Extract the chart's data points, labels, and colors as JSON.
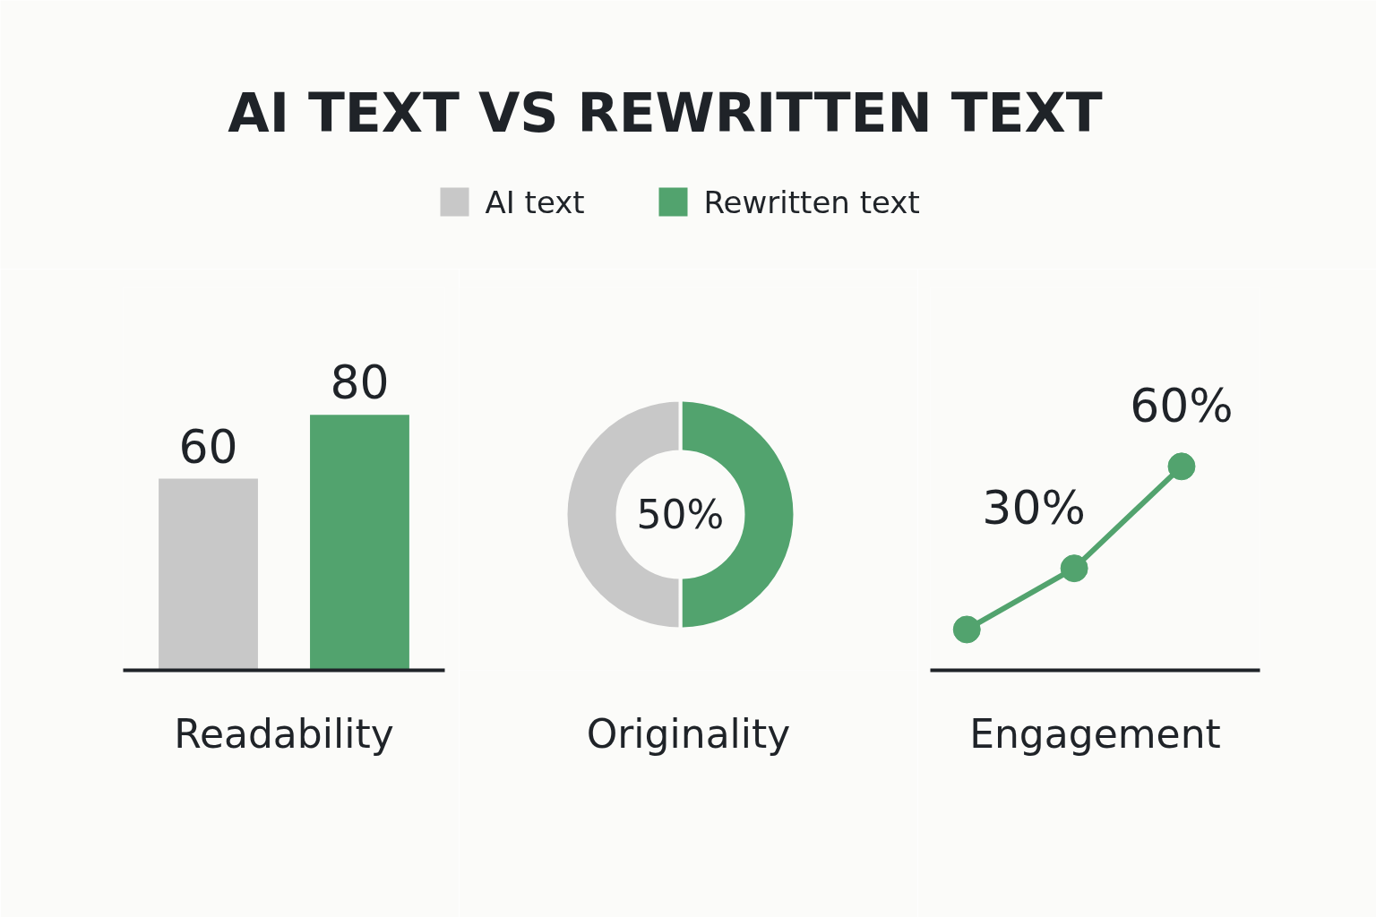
{
  "chart_data": [
    {
      "type": "bar",
      "title": "AI TEXT VS REWRITTEN TEXT",
      "legend": "top",
      "xlabel": "Readability",
      "categories": [
        null
      ],
      "data_labels": true,
      "series": [
        {
          "name": "AI text",
          "color": "#c8c8c8",
          "values": [
            60
          ]
        },
        {
          "name": "Rewritten text",
          "color": "#52a36e",
          "values": [
            80
          ]
        }
      ]
    },
    {
      "type": "donut",
      "xlabel": "Originality",
      "categories": [
        null,
        null
      ],
      "values": [
        50,
        50
      ],
      "colors": [
        "#52a36e",
        "#c8c8c8"
      ],
      "annotations": [
        "50%"
      ]
    },
    {
      "type": "line",
      "xlabel": "Engagement",
      "categories": [
        null,
        null,
        null
      ],
      "marker": "circle",
      "series": [
        {
          "color": "#52a36e",
          "values": [
            12,
            30,
            60
          ],
          "value_labels": [
            null,
            "30%",
            "60%"
          ]
        }
      ]
    }
  ]
}
